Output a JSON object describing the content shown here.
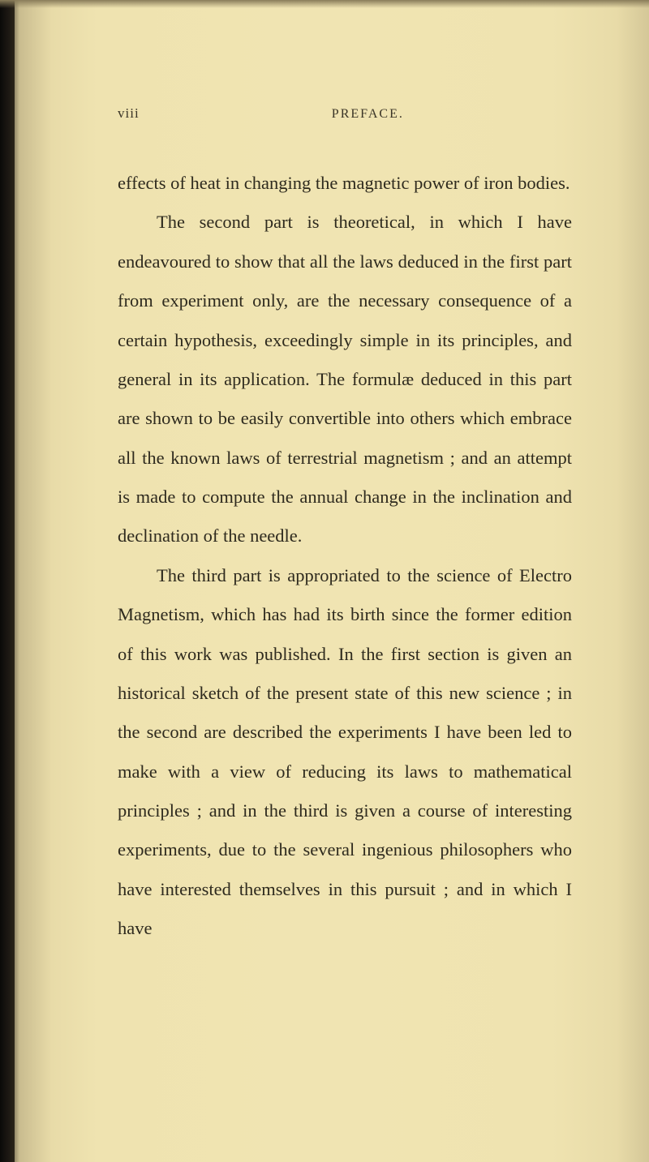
{
  "page": {
    "number": "viii",
    "header_title": "PREFACE.",
    "background_color": "#f0e4b2",
    "text_color": "#2e2a1e",
    "font_family": "Georgia, serif",
    "body_font_size": 22.5,
    "line_height": 2.15,
    "header_font_size": 17
  },
  "paragraphs": {
    "p1": "effects of heat in changing the magnetic power of iron bodies.",
    "p2": "The second part is theoretical, in which I have endeavoured to show that all the laws deduced in the first part from experiment only, are the neces­sary consequence of a certain hypothesis, exceed­ingly simple in its principles, and general in its application. The formulæ deduced in this part are shown to be easily convertible into others which embrace all the known laws of terrestrial magnet­ism ; and an attempt is made to compute the annual change in the inclination and declination of the needle.",
    "p3": "The third part is appropriated to the science of Electro Magnetism, which has had its birth since the former edition of this work was published. In the first section is given an historical sketch of the present state of this new science ; in the second are described the experiments I have been led to make with a view of reducing its laws to mathe­matical principles ; and in the third is given a course of interesting experiments, due to the several ingenious philosophers who have interested themselves in this pursuit ; and in which I have"
  }
}
